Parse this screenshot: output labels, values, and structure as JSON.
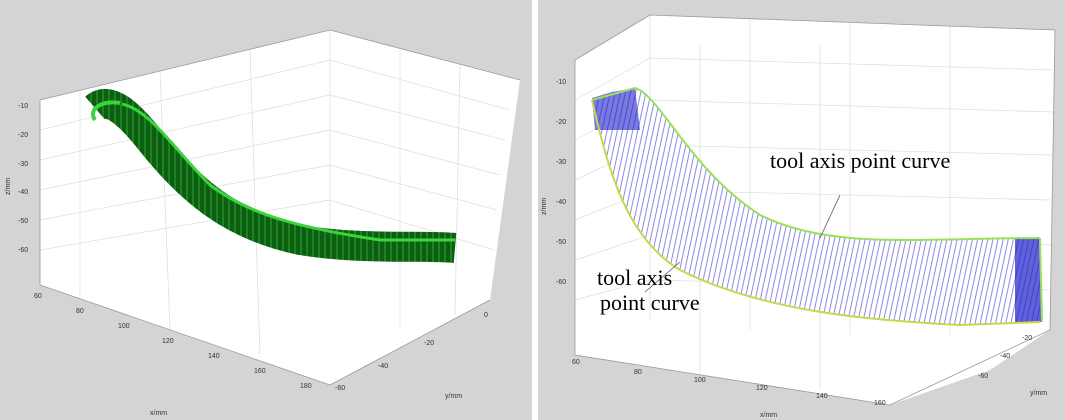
{
  "panels": [
    {
      "z_label": "z/mm",
      "x_label": "x/mm",
      "y_label": "y/mm",
      "z_ticks": [
        "-10",
        "-20",
        "-30",
        "-40",
        "-50",
        "-60"
      ],
      "x_ticks": [
        "60",
        "80",
        "100",
        "120",
        "140",
        "160",
        "180"
      ],
      "y_ticks": [
        "-60",
        "-40",
        "-20",
        "0"
      ]
    },
    {
      "z_label": "z/mm",
      "x_label": "x/mm",
      "y_label": "y/mm",
      "z_ticks": [
        "-10",
        "-20",
        "-30",
        "-40",
        "-50",
        "-60"
      ],
      "x_ticks": [
        "60",
        "80",
        "100",
        "120",
        "140",
        "160"
      ],
      "y_ticks": [
        "-60",
        "-40",
        "-20"
      ],
      "annotations": [
        "tool axis point curve",
        "tool axis",
        "point curve"
      ]
    }
  ]
}
